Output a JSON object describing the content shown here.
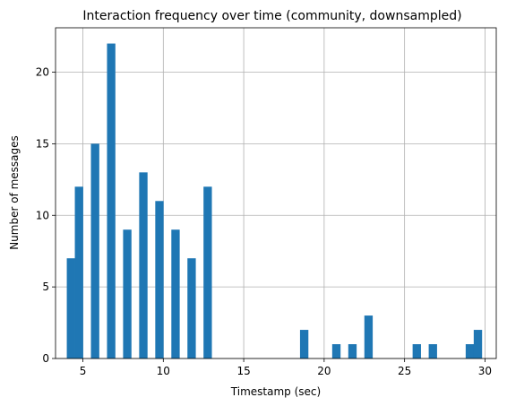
{
  "chart_data": {
    "type": "bar",
    "title": "Interaction frequency over time (community, downsampled)",
    "xlabel": "Timestamp (sec)",
    "ylabel": "Number of messages",
    "xlim": [
      3.3,
      30.7
    ],
    "ylim": [
      0,
      23.1
    ],
    "xticks": [
      5,
      10,
      15,
      20,
      25,
      30
    ],
    "yticks": [
      0,
      5,
      10,
      15,
      20
    ],
    "grid": true,
    "bar_color": "#1f77b4",
    "bin_width": 0.52,
    "bars": [
      {
        "x": 4.0,
        "value": 7
      },
      {
        "x": 4.5,
        "value": 12
      },
      {
        "x": 5.5,
        "value": 15
      },
      {
        "x": 6.5,
        "value": 22
      },
      {
        "x": 7.5,
        "value": 9
      },
      {
        "x": 8.5,
        "value": 13
      },
      {
        "x": 9.5,
        "value": 11
      },
      {
        "x": 10.5,
        "value": 9
      },
      {
        "x": 11.5,
        "value": 7
      },
      {
        "x": 12.5,
        "value": 12
      },
      {
        "x": 18.5,
        "value": 2
      },
      {
        "x": 20.5,
        "value": 1
      },
      {
        "x": 21.5,
        "value": 1
      },
      {
        "x": 22.5,
        "value": 3
      },
      {
        "x": 25.5,
        "value": 1
      },
      {
        "x": 26.5,
        "value": 1
      },
      {
        "x": 28.8,
        "value": 1
      },
      {
        "x": 29.3,
        "value": 2
      }
    ]
  }
}
